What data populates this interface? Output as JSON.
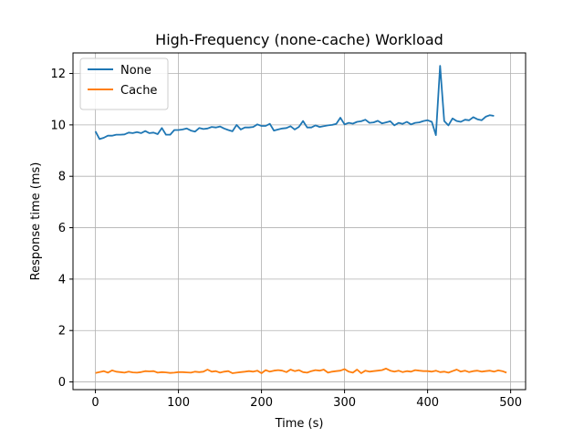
{
  "chart_data": {
    "type": "line",
    "title": "High-Frequency (none-cache) Workload",
    "xlabel": "Time (s)",
    "ylabel": "Response time (ms)",
    "xlim": [
      -27,
      518
    ],
    "ylim": [
      -0.3,
      12.8
    ],
    "xticks": [
      0,
      100,
      200,
      300,
      400,
      500
    ],
    "yticks": [
      0,
      2,
      4,
      6,
      8,
      10,
      12
    ],
    "grid": true,
    "legend": "top-left",
    "series": [
      {
        "name": "None",
        "color": "#1f77b4",
        "x": [
          0,
          5,
          10,
          15,
          20,
          25,
          30,
          35,
          40,
          45,
          50,
          55,
          60,
          65,
          70,
          75,
          80,
          85,
          90,
          95,
          100,
          105,
          110,
          115,
          120,
          125,
          130,
          135,
          140,
          145,
          150,
          155,
          160,
          165,
          170,
          175,
          180,
          185,
          190,
          195,
          200,
          205,
          210,
          215,
          220,
          225,
          230,
          235,
          240,
          245,
          250,
          255,
          260,
          265,
          270,
          275,
          280,
          285,
          290,
          295,
          300,
          305,
          310,
          315,
          320,
          325,
          330,
          335,
          340,
          345,
          350,
          355,
          360,
          365,
          370,
          375,
          380,
          385,
          390,
          395,
          400,
          405,
          410,
          415,
          420,
          425,
          430,
          435,
          440,
          445,
          450,
          455,
          460,
          465,
          470,
          475,
          480
        ],
        "y": [
          9.75,
          9.45,
          9.5,
          9.58,
          9.58,
          9.62,
          9.62,
          9.63,
          9.7,
          9.68,
          9.72,
          9.68,
          9.76,
          9.68,
          9.7,
          9.64,
          9.88,
          9.62,
          9.62,
          9.8,
          9.8,
          9.82,
          9.86,
          9.78,
          9.74,
          9.88,
          9.84,
          9.86,
          9.92,
          9.9,
          9.94,
          9.86,
          9.8,
          9.75,
          10.0,
          9.82,
          9.9,
          9.9,
          9.92,
          10.02,
          9.96,
          9.96,
          10.04,
          9.78,
          9.82,
          9.86,
          9.88,
          9.95,
          9.82,
          9.92,
          10.15,
          9.9,
          9.9,
          9.98,
          9.92,
          9.95,
          9.98,
          10.0,
          10.04,
          10.28,
          10.02,
          10.08,
          10.05,
          10.12,
          10.14,
          10.2,
          10.08,
          10.1,
          10.16,
          10.06,
          10.1,
          10.14,
          9.98,
          10.08,
          10.04,
          10.12,
          10.02,
          10.08,
          10.1,
          10.15,
          10.18,
          10.12,
          9.6,
          12.3,
          10.15,
          9.98,
          10.25,
          10.15,
          10.12,
          10.2,
          10.18,
          10.3,
          10.22,
          10.18,
          10.32,
          10.38,
          10.35
        ]
      },
      {
        "name": "Cache",
        "color": "#ff7f0e",
        "x": [
          0,
          5,
          10,
          15,
          20,
          25,
          30,
          35,
          40,
          45,
          50,
          55,
          60,
          65,
          70,
          75,
          80,
          85,
          90,
          95,
          100,
          105,
          110,
          115,
          120,
          125,
          130,
          135,
          140,
          145,
          150,
          155,
          160,
          165,
          170,
          175,
          180,
          185,
          190,
          195,
          200,
          205,
          210,
          215,
          220,
          225,
          230,
          235,
          240,
          245,
          250,
          255,
          260,
          265,
          270,
          275,
          280,
          285,
          290,
          295,
          300,
          305,
          310,
          315,
          320,
          325,
          330,
          335,
          340,
          345,
          350,
          355,
          360,
          365,
          370,
          375,
          380,
          385,
          390,
          395,
          400,
          405,
          410,
          415,
          420,
          425,
          430,
          435,
          440,
          445,
          450,
          455,
          460,
          465,
          470,
          475,
          480,
          485,
          490,
          495
        ],
        "y": [
          0.35,
          0.38,
          0.42,
          0.36,
          0.45,
          0.4,
          0.38,
          0.36,
          0.4,
          0.37,
          0.36,
          0.38,
          0.42,
          0.41,
          0.42,
          0.36,
          0.38,
          0.37,
          0.35,
          0.36,
          0.38,
          0.38,
          0.37,
          0.36,
          0.4,
          0.38,
          0.4,
          0.48,
          0.4,
          0.42,
          0.36,
          0.4,
          0.42,
          0.34,
          0.36,
          0.38,
          0.4,
          0.42,
          0.4,
          0.44,
          0.34,
          0.46,
          0.4,
          0.44,
          0.46,
          0.44,
          0.38,
          0.48,
          0.42,
          0.46,
          0.38,
          0.36,
          0.42,
          0.46,
          0.44,
          0.48,
          0.36,
          0.4,
          0.42,
          0.44,
          0.5,
          0.4,
          0.36,
          0.48,
          0.34,
          0.44,
          0.4,
          0.42,
          0.44,
          0.46,
          0.52,
          0.44,
          0.4,
          0.44,
          0.38,
          0.42,
          0.4,
          0.46,
          0.44,
          0.42,
          0.42,
          0.4,
          0.44,
          0.38,
          0.4,
          0.36,
          0.42,
          0.48,
          0.4,
          0.44,
          0.38,
          0.42,
          0.44,
          0.4,
          0.42,
          0.44,
          0.4,
          0.45,
          0.42,
          0.36
        ]
      }
    ]
  }
}
